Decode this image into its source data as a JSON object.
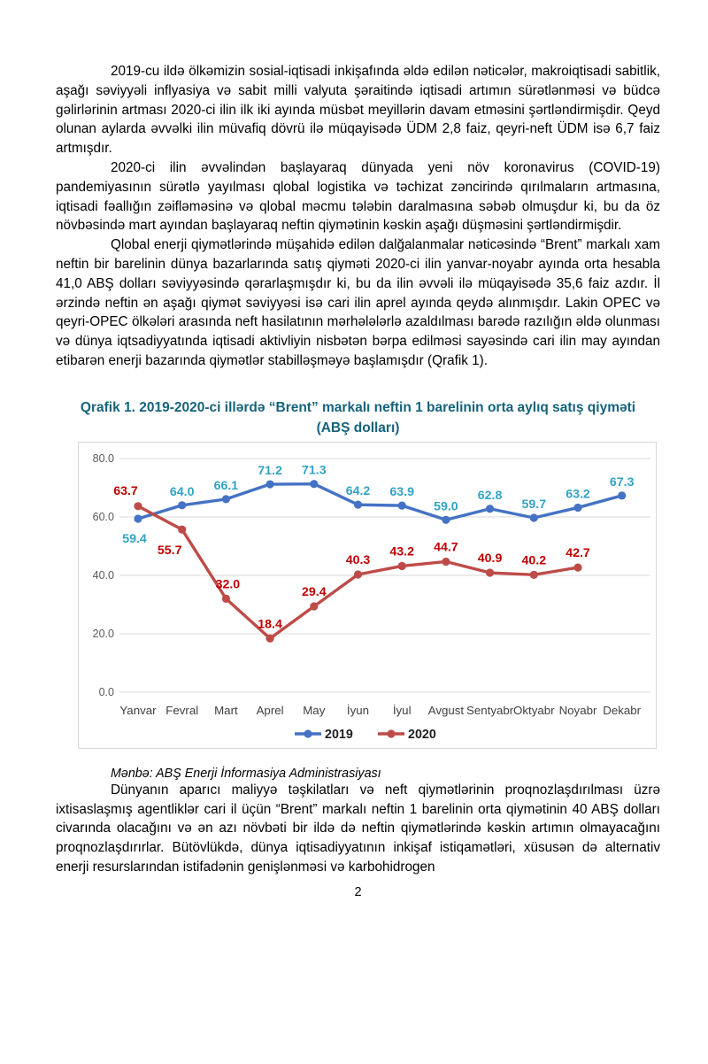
{
  "content": {
    "paragraphs": [
      "2019-cu ildə ölkəmizin sosial-iqtisadi inkişafında əldə edilən nəticələr, makroiqtisadi sabitlik, aşağı səviyyəli inflyasiya və sabit milli valyuta şəraitində iqtisadi artımın sürətlənməsi və büdcə gəlirlərinin artması 2020-ci ilin ilk iki ayında müsbət meyillərin davam etməsini şərtləndirmişdir. Qeyd olunan aylarda əvvəlki ilin müvafiq dövrü ilə müqayisədə ÜDM 2,8 faiz, qeyri-neft ÜDM isə 6,7 faiz artmışdır.",
      "2020-ci ilin əvvəlindən başlayaraq dünyada yeni növ koronavirus (COVID-19) pandemiyasının sürətlə yayılması qlobal logistika və təchizat zəncirində qırılmaların artmasına, iqtisadi fəallığın zəifləməsinə və qlobal məcmu tələbin daralmasına səbəb olmuşdur ki, bu da öz növbəsində mart ayından başlayaraq neftin qiymətinin kəskin aşağı düşməsini şərtləndirmişdir.",
      "Qlobal enerji qiymətlərində müşahidə edilən dalğalanmalar nəticəsində “Brent” markalı xam neftin bir barelinin dünya bazarlarında satış qiyməti 2020-ci ilin yanvar-noyabr ayında orta hesabla 41,0 ABŞ dolları səviyyəsində qərarlaşmışdır ki, bu da ilin əvvəli ilə müqayisədə 35,6 faiz azdır. İl ərzində neftin ən aşağı qiymət səviyyəsi isə cari ilin aprel ayında qeydə alınmışdır. Lakin OPEC və qeyri-OPEC ölkələri arasında neft hasilatının mərhələlərlə azaldılması barədə razılığın əldə olunması və dünya iqtsadiyyatında iqtisadi aktivliyin nisbətən bərpa edilməsi sayəsində cari ilin may ayından etibarən enerji bazarında qiymətlər stabilləşməyə başlamışdır (Qrafik 1).",
      "Dünyanın aparıcı maliyyə təşkilatları və neft qiymətlərinin proqnozlaşdırılması üzrə ixtisaslaşmış agentliklər cari il üçün “Brent” markalı neftin 1 barelinin orta qiymətinin 40 ABŞ dolları civarında olacağını və ən azı növbəti bir ildə də neftin qiymətlərində kəskin artımın olmayacağını proqnozlaşdırırlar. Bütövlükdə, dünya iqtisadiyyatının inkişaf istiqamətləri, xüsusən də alternativ enerji resurslarından istifadənin genişlənməsi və karbohidrogen"
    ],
    "source_note": "Mənbə: ABŞ Enerji İnformasiya Administrasiyası",
    "page_number": "2"
  },
  "chart_data": {
    "type": "line",
    "title": "Qrafik 1. 2019-2020-ci illərdə “Brent” markalı neftin 1 barelinin orta aylıq satış qiyməti",
    "subtitle": "(ABŞ dolları)",
    "categories": [
      "Yanvar",
      "Fevral",
      "Mart",
      "Aprel",
      "May",
      "İyun",
      "İyul",
      "Avgust",
      "Sentyabr",
      "Oktyabr",
      "Noyabr",
      "Dekabr"
    ],
    "series": [
      {
        "name": "2019",
        "color": "#4472C4",
        "label_color": "#31A3C4",
        "values": [
          59.4,
          64.0,
          66.1,
          71.2,
          71.3,
          64.2,
          63.9,
          59.0,
          62.8,
          59.7,
          63.2,
          67.3
        ]
      },
      {
        "name": "2020",
        "color": "#BE4B48",
        "label_color": "#C00000",
        "values": [
          63.7,
          55.7,
          32.0,
          18.4,
          29.4,
          40.3,
          43.2,
          44.7,
          40.9,
          40.2,
          42.7,
          null
        ]
      }
    ],
    "ylim": [
      0,
      80
    ],
    "y_ticks": [
      0,
      20,
      40,
      60,
      80
    ],
    "y_tick_labels": [
      "0.0",
      "20.0",
      "40.0",
      "60.0",
      "80.0"
    ],
    "grid": true,
    "legend_position": "bottom",
    "label_offsets": {
      "2019": [
        [
          -4,
          27
        ],
        [
          0,
          -11
        ],
        [
          0,
          -11
        ],
        [
          0,
          -11
        ],
        [
          0,
          -11
        ],
        [
          0,
          -11
        ],
        [
          0,
          -11
        ],
        [
          0,
          -11
        ],
        [
          0,
          -11
        ],
        [
          0,
          -11
        ],
        [
          0,
          -11
        ],
        [
          0,
          -11
        ]
      ],
      "2020": [
        [
          -14,
          -13
        ],
        [
          -14,
          28
        ],
        [
          2,
          -12
        ],
        [
          0,
          -12
        ],
        [
          0,
          -12
        ],
        [
          0,
          -12
        ],
        [
          0,
          -12
        ],
        [
          0,
          -12
        ],
        [
          0,
          -12
        ],
        [
          0,
          -12
        ],
        [
          0,
          -12
        ],
        null
      ]
    },
    "colors": {
      "grid": "#D9D9D9",
      "axis_tick_text": "#595959",
      "x_label_text": "#404040",
      "legend_text": "#1F1F1F",
      "title_text": "#16637C",
      "chart_border": "#D8D8D8"
    }
  }
}
